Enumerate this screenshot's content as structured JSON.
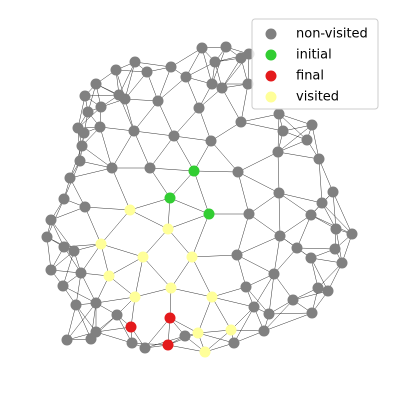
{
  "chart_data": {
    "type": "network",
    "legend": "upper right",
    "series": [
      {
        "name": "non-visited",
        "color": "#808080",
        "x": [
          202,
          226,
          241,
          249,
          215,
          186,
          171,
          135,
          147,
          116,
          96,
          85,
          119,
          125,
          158,
          199,
          212,
          222,
          248,
          279,
          283,
          312,
          307,
          319,
          278,
          241,
          211,
          174,
          134,
          100,
          84,
          78,
          82,
          80,
          70,
          64,
          85,
          51,
          47,
          64,
          74,
          81,
          51,
          63,
          76,
          96,
          117,
          96,
          91,
          67,
          132,
          145,
          185,
          234,
          264,
          269,
          254,
          293,
          318,
          328,
          312,
          246,
          274,
          237,
          280,
          249,
          238,
          279,
          311,
          322,
          333,
          336,
          352,
          335,
          342,
          311,
          297,
          112,
          150,
          88,
          101
        ],
        "y": [
          48,
          47,
          58,
          54,
          62,
          77,
          67,
          62,
          72,
          70,
          84,
          96,
          95,
          99,
          101,
          108,
          84,
          88,
          84,
          114,
          131,
          125,
          140,
          159,
          152,
          122,
          141,
          136,
          131,
          127,
          133,
          128,
          146,
          161,
          178,
          199,
          207,
          220,
          237,
          247,
          251,
          273,
          270,
          286,
          305,
          303,
          315,
          332,
          339,
          340,
          343,
          348,
          336,
          343,
          331,
          314,
          307,
          300,
          288,
          291,
          313,
          287,
          274,
          255,
          236,
          214,
          172,
          193,
          215,
          203,
          192,
          229,
          234,
          249,
          263,
          258,
          248,
          168,
          168,
          112,
          107
        ]
      },
      {
        "name": "initial",
        "color": "#32cd32",
        "x": [
          194,
          170,
          209
        ],
        "y": [
          171,
          198,
          214
        ]
      },
      {
        "name": "final",
        "color": "#e41a1c",
        "x": [
          131,
          170,
          168
        ],
        "y": [
          327,
          318,
          345
        ]
      },
      {
        "name": "visited",
        "color": "#ffff99",
        "x": [
          130,
          168,
          101,
          143,
          192,
          109,
          171,
          135,
          212,
          198,
          231,
          205
        ],
        "y": [
          210,
          229,
          244,
          257,
          257,
          276,
          288,
          297,
          297,
          333,
          330,
          352
        ]
      }
    ]
  }
}
